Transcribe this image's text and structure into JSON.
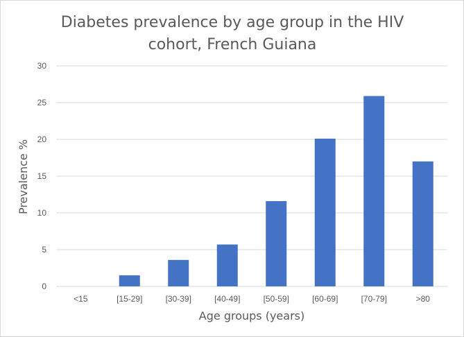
{
  "chart_data": {
    "type": "bar",
    "title": "Diabetes prevalence by age group in the HIV cohort, French Guiana",
    "title_lines": [
      "Diabetes prevalence by age group in the HIV",
      "cohort, French Guiana"
    ],
    "xlabel": "Age groups (years)",
    "ylabel": "Prevalence %",
    "categories": [
      "<15",
      "[15-29]",
      "[30-39]",
      "[40-49]",
      "[50-59]",
      "[60-69]",
      "[70-79]",
      ">80"
    ],
    "values": [
      0,
      1.5,
      3.6,
      5.7,
      11.6,
      20.1,
      25.9,
      17.0
    ],
    "ylim": [
      0,
      30
    ],
    "yticks": [
      0,
      5,
      10,
      15,
      20,
      25,
      30
    ],
    "grid": true,
    "legend": "none",
    "colors": {
      "bar": "#4472c4",
      "grid": "#d9d9d9",
      "text": "#595959"
    }
  }
}
